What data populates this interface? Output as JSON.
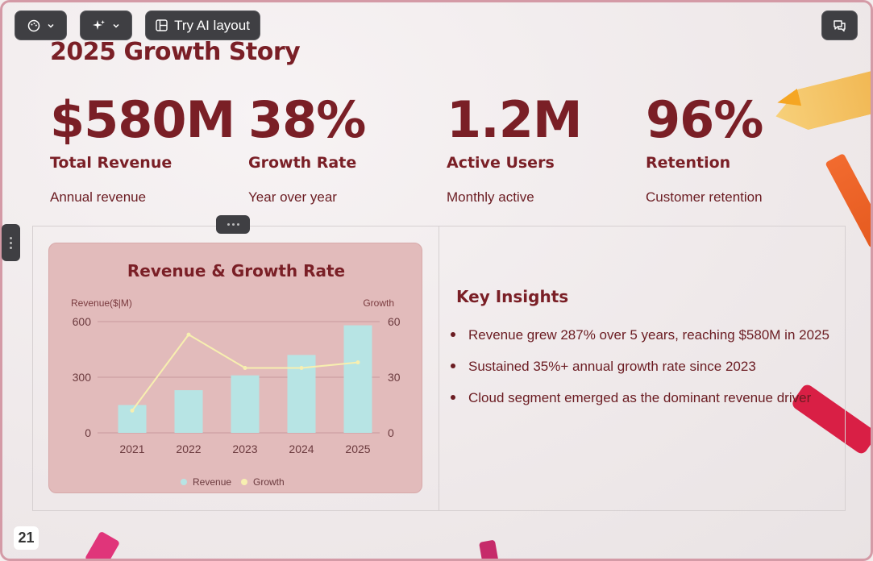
{
  "toolbar": {
    "palette_icon": "palette-icon",
    "sparkle_icon": "sparkle-icon",
    "ai_layout_label": "Try AI layout",
    "comment_icon": "comment-icon"
  },
  "slide": {
    "title": "2025 Growth Story",
    "stats": [
      {
        "value": "$580M",
        "label": "Total Revenue",
        "sub": "Annual revenue"
      },
      {
        "value": "38%",
        "label": "Growth Rate",
        "sub": "Year over year"
      },
      {
        "value": "1.2M",
        "label": "Active Users",
        "sub": "Monthly active"
      },
      {
        "value": "96%",
        "label": "Retention",
        "sub": "Customer retention"
      }
    ],
    "insights_title": "Key Insights",
    "insights": [
      "Revenue grew 287% over 5 years, reaching $580M in 2025",
      "Sustained 35%+ annual growth rate since 2023",
      "Cloud segment emerged as the dominant revenue driver"
    ],
    "page_number": "21"
  },
  "colors": {
    "accent": "#7a1f26",
    "bar": "#b7e4e4",
    "line": "#f7efb0",
    "card": "#e2bbbb"
  },
  "chart_data": {
    "type": "bar",
    "title": "Revenue & Growth Rate",
    "categories": [
      "2021",
      "2022",
      "2023",
      "2024",
      "2025"
    ],
    "series": [
      {
        "name": "Revenue",
        "type": "bar",
        "axis": "left",
        "values": [
          150,
          230,
          310,
          420,
          580
        ]
      },
      {
        "name": "Growth",
        "type": "line",
        "axis": "right",
        "values": [
          12,
          53,
          35,
          35,
          38
        ]
      }
    ],
    "ylabel": "Revenue($|M)",
    "y2label": "Growth",
    "ylim": [
      0,
      600
    ],
    "y2lim": [
      0,
      60
    ],
    "yticks": [
      "0",
      "300",
      "600"
    ],
    "y2ticks": [
      "0",
      "30",
      "60"
    ],
    "grid": true,
    "legend": "bottom"
  }
}
